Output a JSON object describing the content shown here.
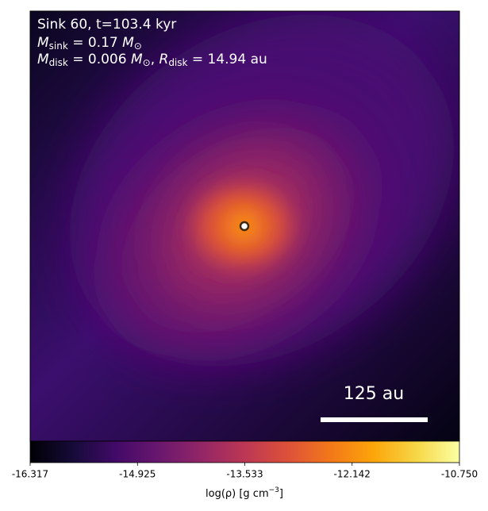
{
  "chart_data": {
    "type": "density-map",
    "annotations": {
      "line1": "Sink 60, t=103.4 kyr",
      "line2": [
        "M",
        "sink",
        " = 0.17 ",
        "M",
        "⊙"
      ],
      "line3": [
        "M",
        "disk",
        " = 0.006 ",
        "M",
        "⊙",
        ", ",
        "R",
        "disk",
        " = 14.94 au"
      ]
    },
    "scale_bar_label": "125 au",
    "colormap": "inferno",
    "clim": [
      -16.317,
      -10.75
    ],
    "colorbar_ticks": [
      -16.317,
      -14.925,
      -13.533,
      -12.142,
      {
        "value": -10.75,
        "label": "-10.750"
      }
    ],
    "colorbar_label": [
      "log(ρ) [g cm",
      "−3",
      "]"
    ]
  }
}
